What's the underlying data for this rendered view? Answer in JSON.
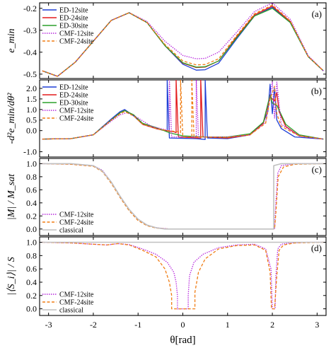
{
  "chart_data": [
    {
      "type": "line",
      "panel_label": "(a)",
      "ylabel": "e_min",
      "ylim": [
        -0.52,
        -0.175
      ],
      "yticks": [
        -0.2,
        -0.3,
        -0.4,
        -0.5
      ],
      "ytick_labels": [
        "-0.2",
        "-0.3",
        "-0.4",
        "-0.5"
      ],
      "legend_position": "top-left",
      "series": [
        {
          "name": "ED-12site",
          "color": "#1f3fd6",
          "style": "solid",
          "x": [
            -3.14,
            -2.8,
            -2.4,
            -2.0,
            -1.6,
            -1.2,
            -0.8,
            -0.4,
            0.0,
            0.3,
            0.5,
            0.8,
            1.2,
            1.6,
            2.0,
            2.4,
            2.8,
            3.14
          ],
          "y": [
            -0.485,
            -0.51,
            -0.445,
            -0.35,
            -0.255,
            -0.22,
            -0.265,
            -0.37,
            -0.455,
            -0.482,
            -0.48,
            -0.45,
            -0.34,
            -0.235,
            -0.195,
            -0.265,
            -0.42,
            -0.485
          ]
        },
        {
          "name": "ED-24site",
          "color": "#e31a1c",
          "style": "solid",
          "x": [
            -3.14,
            -2.8,
            -2.4,
            -2.0,
            -1.6,
            -1.2,
            -0.8,
            -0.4,
            0.0,
            0.3,
            0.5,
            0.8,
            1.2,
            1.6,
            2.0,
            2.4,
            2.8,
            3.14
          ],
          "y": [
            -0.485,
            -0.51,
            -0.445,
            -0.35,
            -0.255,
            -0.22,
            -0.265,
            -0.37,
            -0.45,
            -0.47,
            -0.468,
            -0.44,
            -0.33,
            -0.23,
            -0.19,
            -0.26,
            -0.42,
            -0.485
          ]
        },
        {
          "name": "ED-30site",
          "color": "#2ca02c",
          "style": "solid",
          "x": [
            -3.14,
            -2.8,
            -2.4,
            -2.0,
            -1.6,
            -1.2,
            -0.8,
            -0.4,
            0.0,
            0.3,
            0.5,
            0.8,
            1.2,
            1.6,
            2.0,
            2.4,
            2.8,
            3.14
          ],
          "y": [
            -0.485,
            -0.51,
            -0.445,
            -0.35,
            -0.255,
            -0.22,
            -0.265,
            -0.37,
            -0.448,
            -0.468,
            -0.466,
            -0.44,
            -0.335,
            -0.235,
            -0.2,
            -0.265,
            -0.42,
            -0.485
          ]
        },
        {
          "name": "CMF-12site",
          "color": "#b41edc",
          "style": "dotted",
          "x": [
            -3.14,
            -2.8,
            -2.4,
            -2.0,
            -1.6,
            -1.2,
            -0.8,
            -0.4,
            0.0,
            0.3,
            0.5,
            0.8,
            1.2,
            1.6,
            2.0,
            2.4,
            2.8,
            3.14
          ],
          "y": [
            -0.485,
            -0.51,
            -0.445,
            -0.35,
            -0.255,
            -0.22,
            -0.26,
            -0.35,
            -0.415,
            -0.43,
            -0.428,
            -0.4,
            -0.31,
            -0.215,
            -0.175,
            -0.25,
            -0.415,
            -0.485
          ]
        },
        {
          "name": "CMF-24site",
          "color": "#f07d14",
          "style": "dashed",
          "x": [
            -3.14,
            -2.8,
            -2.4,
            -2.0,
            -1.6,
            -1.2,
            -0.8,
            -0.4,
            0.0,
            0.3,
            0.5,
            0.8,
            1.2,
            1.6,
            2.0,
            2.4,
            2.8,
            3.14
          ],
          "y": [
            -0.485,
            -0.51,
            -0.445,
            -0.35,
            -0.255,
            -0.22,
            -0.265,
            -0.365,
            -0.44,
            -0.458,
            -0.456,
            -0.43,
            -0.325,
            -0.225,
            -0.185,
            -0.258,
            -0.42,
            -0.485
          ]
        }
      ]
    },
    {
      "type": "line",
      "panel_label": "(b)",
      "ylabel": "-d²e_min/dθ²",
      "ylim": [
        -1.25,
        2.4
      ],
      "yticks": [
        -1.0,
        0.0,
        0.5,
        1.0,
        1.5,
        2.0
      ],
      "ytick_labels": [
        "-1.0",
        "0.0",
        "0.5",
        "1.0",
        "1.5",
        "2.0"
      ],
      "legend_position": "top-left",
      "series": [
        {
          "name": "ED-12site",
          "color": "#1f3fd6",
          "style": "solid",
          "x": [
            -3.14,
            -2.5,
            -2.0,
            -1.6,
            -1.4,
            -1.3,
            -1.1,
            -0.9,
            -0.6,
            -0.4,
            -0.35,
            -0.35,
            -0.3,
            0.3,
            0.5,
            0.5,
            0.55,
            1.0,
            1.5,
            1.8,
            1.9,
            1.95,
            2.0,
            2.05,
            2.1,
            2.2,
            2.5,
            3.14
          ],
          "y": [
            -0.4,
            -0.38,
            -0.2,
            0.55,
            0.9,
            1.0,
            0.7,
            0.3,
            0.1,
            0.0,
            0.0,
            2.4,
            -0.35,
            -0.38,
            -0.42,
            2.4,
            -0.35,
            -0.38,
            -0.2,
            0.4,
            0.9,
            2.2,
            0.8,
            2.0,
            0.5,
            0.1,
            -0.3,
            -0.4
          ]
        },
        {
          "name": "ED-24site",
          "color": "#e31a1c",
          "style": "solid",
          "x": [
            -3.14,
            -2.5,
            -2.0,
            -1.6,
            -1.4,
            -1.3,
            -1.1,
            -0.9,
            -0.6,
            -0.4,
            -0.2,
            -0.15,
            -0.15,
            -0.1,
            0.35,
            0.4,
            0.4,
            0.45,
            1.0,
            1.5,
            1.8,
            1.95,
            2.05,
            2.1,
            2.15,
            2.3,
            2.6,
            3.14
          ],
          "y": [
            -0.4,
            -0.38,
            -0.2,
            0.5,
            0.85,
            0.95,
            0.75,
            0.3,
            0.1,
            0.0,
            -0.05,
            -0.1,
            2.4,
            -0.3,
            -0.35,
            -0.35,
            2.4,
            -0.3,
            -0.35,
            -0.2,
            0.35,
            1.6,
            1.4,
            1.8,
            0.9,
            0.2,
            -0.25,
            -0.4
          ]
        },
        {
          "name": "ED-30site",
          "color": "#2ca02c",
          "style": "solid",
          "x": [
            -3.14,
            -2.5,
            -2.0,
            -1.6,
            -1.4,
            -1.3,
            -1.1,
            -0.9,
            -0.6,
            -0.3,
            0.0,
            0.5,
            1.0,
            1.5,
            1.8,
            1.95,
            2.0,
            2.1,
            2.3,
            2.6,
            3.14
          ],
          "y": [
            -0.4,
            -0.38,
            -0.2,
            0.5,
            0.85,
            0.95,
            0.75,
            0.35,
            0.15,
            -0.1,
            -0.25,
            -0.3,
            -0.3,
            -0.15,
            0.4,
            1.7,
            1.3,
            1.2,
            0.3,
            -0.2,
            -0.4
          ]
        },
        {
          "name": "CMF-12site",
          "color": "#b41edc",
          "style": "dotted",
          "x": [
            -3.14,
            -2.5,
            -2.0,
            -1.6,
            -1.4,
            -1.25,
            -1.0,
            -0.7,
            -0.5,
            -0.3,
            -0.3,
            -0.25,
            0.25,
            0.3,
            0.3,
            0.35,
            1.0,
            1.5,
            1.85,
            2.0,
            2.05,
            2.1,
            2.2,
            2.6,
            3.14
          ],
          "y": [
            -0.4,
            -0.38,
            -0.2,
            0.45,
            0.75,
            0.85,
            0.6,
            0.2,
            0.1,
            0.0,
            2.4,
            -0.3,
            -0.3,
            -0.3,
            2.4,
            -0.3,
            -0.3,
            -0.2,
            0.4,
            2.3,
            0.6,
            2.3,
            0.3,
            -0.25,
            -0.4
          ]
        },
        {
          "name": "CMF-24site",
          "color": "#f07d14",
          "style": "dashed",
          "x": [
            -3.14,
            -2.5,
            -2.0,
            -1.6,
            -1.4,
            -1.3,
            -1.1,
            -0.9,
            -0.6,
            -0.35,
            -0.1,
            -0.05,
            -0.05,
            0.0,
            0.15,
            0.2,
            0.2,
            0.25,
            1.0,
            1.5,
            1.85,
            1.95,
            2.05,
            2.1,
            2.2,
            2.6,
            3.14
          ],
          "y": [
            -0.4,
            -0.38,
            -0.2,
            0.5,
            0.8,
            0.9,
            0.7,
            0.3,
            0.1,
            0.0,
            -0.05,
            -0.1,
            2.4,
            -0.3,
            -0.3,
            -0.3,
            2.4,
            -0.3,
            -0.32,
            -0.2,
            0.35,
            1.5,
            2.1,
            0.8,
            0.2,
            -0.25,
            -0.4
          ]
        }
      ]
    },
    {
      "type": "line",
      "panel_label": "(c)",
      "ylabel": "|M| / M_sat",
      "ylim": [
        -0.1,
        1.08
      ],
      "yticks": [
        0.0,
        0.2,
        0.4,
        0.6,
        0.8,
        1.0
      ],
      "ytick_labels": [
        "0.0",
        "0.2",
        "0.4",
        "0.6",
        "0.8",
        "1.0"
      ],
      "legend_position": "bottom-left",
      "series": [
        {
          "name": "CMF-12site",
          "color": "#b41edc",
          "style": "dotted",
          "x": [
            -3.14,
            -2.5,
            -2.0,
            -1.8,
            -1.6,
            -1.4,
            -1.2,
            -1.0,
            -0.8,
            -0.6,
            -0.3,
            0.0,
            1.0,
            2.05,
            2.07,
            2.12,
            2.2,
            2.5,
            3.14
          ],
          "y": [
            1.0,
            0.995,
            0.97,
            0.9,
            0.72,
            0.5,
            0.3,
            0.15,
            0.06,
            0.02,
            0.0,
            0.0,
            0.0,
            0.0,
            0.3,
            0.85,
            0.97,
            1.0,
            1.0
          ]
        },
        {
          "name": "CMF-24site",
          "color": "#f07d14",
          "style": "dashed",
          "x": [
            -3.14,
            -2.5,
            -2.0,
            -1.8,
            -1.6,
            -1.4,
            -1.2,
            -1.0,
            -0.8,
            -0.6,
            -0.3,
            0.0,
            1.0,
            2.05,
            2.08,
            2.13,
            2.25,
            2.5,
            3.14
          ],
          "y": [
            1.0,
            0.99,
            0.96,
            0.88,
            0.7,
            0.48,
            0.28,
            0.13,
            0.05,
            0.015,
            0.0,
            0.0,
            0.0,
            0.0,
            0.25,
            0.8,
            0.95,
            0.99,
            1.0
          ]
        },
        {
          "name": "classical",
          "color": "#c0c0c0",
          "style": "solid",
          "x": [
            -3.14,
            -2.5,
            -2.0,
            -1.8,
            -1.6,
            -1.4,
            -1.2,
            -1.0,
            -0.8,
            -0.6,
            -0.4,
            0.0,
            1.0,
            2.03,
            2.03,
            2.2,
            3.14
          ],
          "y": [
            1.0,
            1.0,
            0.97,
            0.89,
            0.72,
            0.5,
            0.3,
            0.15,
            0.06,
            0.02,
            0.0,
            0.0,
            0.0,
            0.0,
            0.97,
            1.0,
            1.0
          ]
        }
      ]
    },
    {
      "type": "line",
      "panel_label": "(d)",
      "ylabel": "|⟨S_i⟩| / S",
      "ylim": [
        -0.1,
        1.08
      ],
      "yticks": [
        0.0,
        0.2,
        0.4,
        0.6,
        0.8,
        1.0
      ],
      "ytick_labels": [
        "0.0",
        "0.2",
        "0.4",
        "0.6",
        "0.8",
        "1.0"
      ],
      "xlabel": "θ[rad]",
      "xlim": [
        -3.2,
        3.2
      ],
      "xticks": [
        -3,
        -2,
        -1,
        0,
        1,
        2,
        3
      ],
      "xtick_labels": [
        "-3",
        "-2",
        "-1",
        "0",
        "1",
        "2",
        "3"
      ],
      "legend_position": "bottom-left",
      "series": [
        {
          "name": "CMF-12site",
          "color": "#b41edc",
          "style": "dotted",
          "x": [
            -3.14,
            -2.5,
            -2.0,
            -1.7,
            -1.45,
            -1.2,
            -0.9,
            -0.6,
            -0.35,
            -0.2,
            -0.15,
            -0.12,
            -0.12,
            0.12,
            0.12,
            0.15,
            0.25,
            0.45,
            0.8,
            1.2,
            1.6,
            1.85,
            1.97,
            2.0,
            2.03,
            2.06,
            2.08,
            2.12,
            2.2,
            2.4,
            2.8,
            3.14
          ],
          "y": [
            1.0,
            0.99,
            0.97,
            0.96,
            0.98,
            0.965,
            0.9,
            0.82,
            0.7,
            0.55,
            0.4,
            0.2,
            0.0,
            0.0,
            0.2,
            0.5,
            0.7,
            0.82,
            0.92,
            0.96,
            0.97,
            0.9,
            0.6,
            0.0,
            0.0,
            0.0,
            0.5,
            0.9,
            0.97,
            0.99,
            1.0,
            1.0
          ]
        },
        {
          "name": "CMF-24site",
          "color": "#f07d14",
          "style": "dashed",
          "x": [
            -3.14,
            -2.5,
            -2.0,
            -1.7,
            -1.45,
            -1.2,
            -0.9,
            -0.6,
            -0.4,
            -0.3,
            -0.25,
            -0.25,
            0.27,
            0.27,
            0.35,
            0.5,
            0.8,
            1.2,
            1.6,
            1.85,
            1.95,
            1.98,
            2.05,
            2.1,
            2.15,
            2.25,
            2.5,
            3.14
          ],
          "y": [
            1.0,
            0.99,
            0.97,
            0.96,
            0.98,
            0.96,
            0.88,
            0.78,
            0.6,
            0.4,
            0.2,
            0.0,
            0.0,
            0.25,
            0.55,
            0.75,
            0.9,
            0.95,
            0.96,
            0.88,
            0.55,
            0.0,
            0.0,
            0.5,
            0.88,
            0.96,
            0.99,
            1.0
          ]
        },
        {
          "name": "classical",
          "color": "#c0c0c0",
          "style": "solid",
          "x": [
            -3.14,
            3.14
          ],
          "y": [
            1.0,
            1.0
          ]
        }
      ]
    }
  ]
}
